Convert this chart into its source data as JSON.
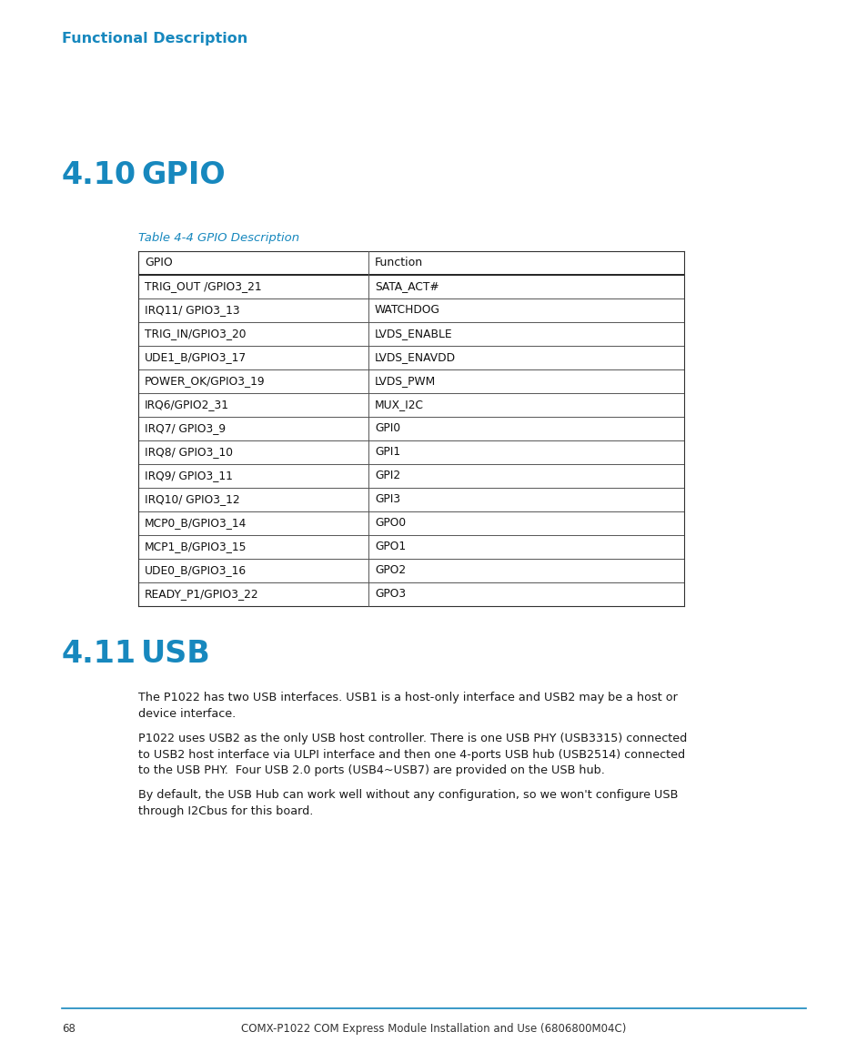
{
  "blue_bar_color": "#1788be",
  "header_text_color": "#1788be",
  "section_title_color": "#1788be",
  "table_caption_color": "#1788be",
  "body_text_color": "#1a1a1a",
  "footer_text_color": "#333333",
  "footer_line_color": "#1788be",
  "dot_color": "#d0d0d0",
  "header_label": "Functional Description",
  "section1_number": "4.10",
  "section1_title": "GPIO",
  "table_caption": "Table 4-4 GPIO Description",
  "table_col1_header": "GPIO",
  "table_col2_header": "Function",
  "table_rows": [
    [
      "TRIG_OUT /GPIO3_21",
      "SATA_ACT#"
    ],
    [
      "IRQ11/ GPIO3_13",
      "WATCHDOG"
    ],
    [
      "TRIG_IN/GPIO3_20",
      "LVDS_ENABLE"
    ],
    [
      "UDE1_B/GPIO3_17",
      "LVDS_ENAVDD"
    ],
    [
      "POWER_OK/GPIO3_19",
      "LVDS_PWM"
    ],
    [
      "IRQ6/GPIO2_31",
      "MUX_I2C"
    ],
    [
      "IRQ7/ GPIO3_9",
      "GPI0"
    ],
    [
      "IRQ8/ GPIO3_10",
      "GPI1"
    ],
    [
      "IRQ9/ GPIO3_11",
      "GPI2"
    ],
    [
      "IRQ10/ GPIO3_12",
      "GPI3"
    ],
    [
      "MCP0_B/GPIO3_14",
      "GPO0"
    ],
    [
      "MCP1_B/GPIO3_15",
      "GPO1"
    ],
    [
      "UDE0_B/GPIO3_16",
      "GPO2"
    ],
    [
      "READY_P1/GPIO3_22",
      "GPO3"
    ]
  ],
  "section2_number": "4.11",
  "section2_title": "USB",
  "usb_para1_line1": "The P1022 has two USB interfaces. USB1 is a host-only interface and USB2 may be a host or",
  "usb_para1_line2": "device interface.",
  "usb_para2_line1": "P1022 uses USB2 as the only USB host controller. There is one USB PHY (USB3315) connected",
  "usb_para2_line2": "to USB2 host interface via ULPI interface and then one 4-ports USB hub (USB2514) connected",
  "usb_para2_line3": "to the USB PHY.  Four USB 2.0 ports (USB4~USB7) are provided on the USB hub.",
  "usb_para3_line1": "By default, the USB Hub can work well without any configuration, so we won't configure USB",
  "usb_para3_line2": "through I2Cbus for this board.",
  "footer_page": "68",
  "footer_doc": "COMX-P1022 COM Express Module Installation and Use (6806800M04C)"
}
